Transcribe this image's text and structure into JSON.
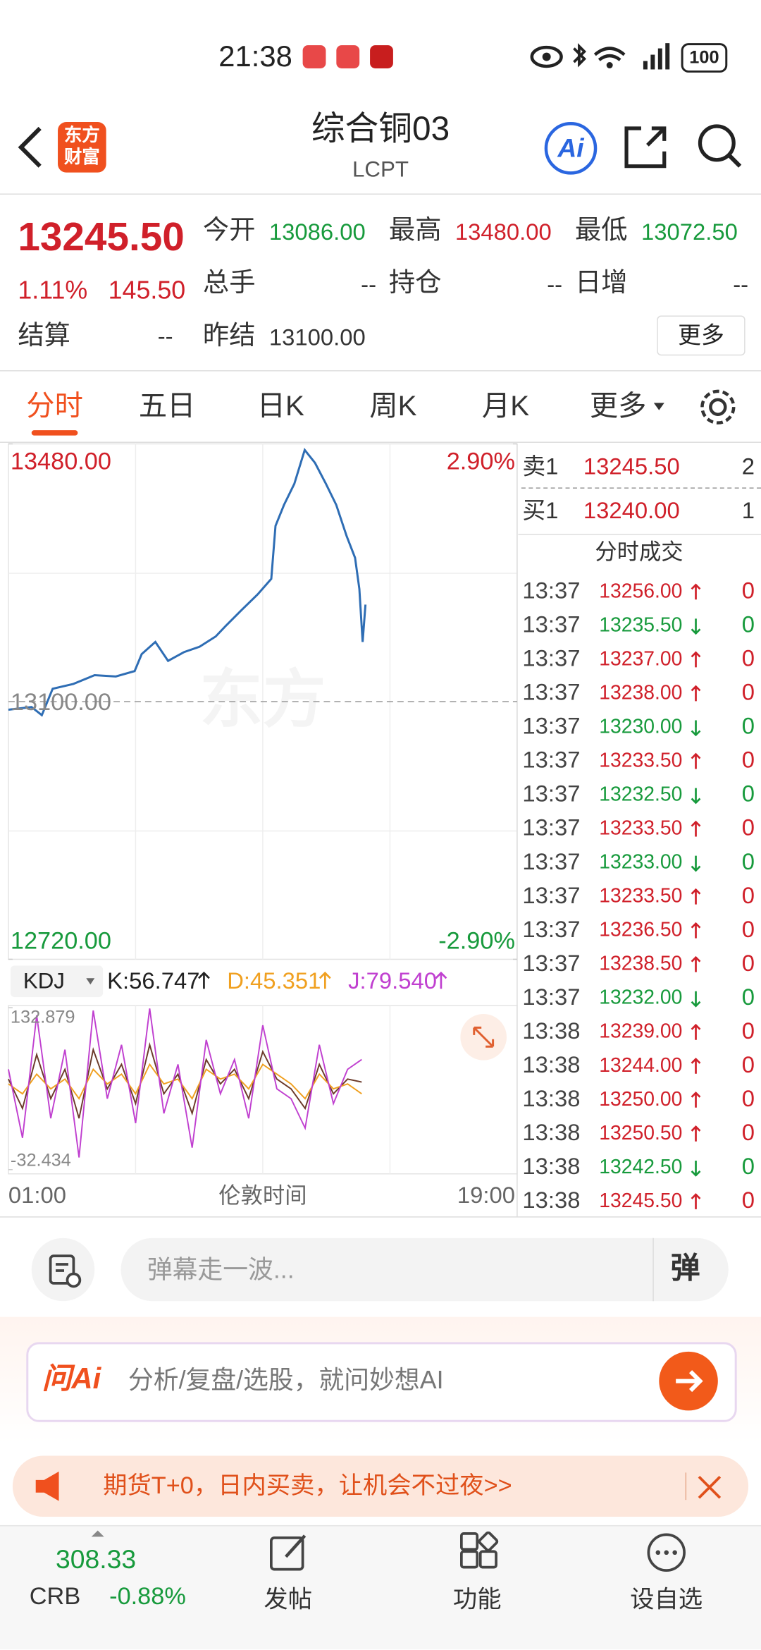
{
  "status_bar": {
    "time": "21:38",
    "battery": "100"
  },
  "header": {
    "logo_lines": [
      "东方",
      "财富"
    ],
    "title": "综合铜03",
    "code": "LCPT",
    "ai": "Ai"
  },
  "quote": {
    "price": "13245.50",
    "change_pct": "1.11%",
    "change": "145.50",
    "fields": [
      {
        "label": "今开",
        "value": "13086.00",
        "trend": "down"
      },
      {
        "label": "最高",
        "value": "13480.00",
        "trend": "up"
      },
      {
        "label": "最低",
        "value": "13072.50",
        "trend": "down"
      },
      {
        "label": "总手",
        "value": "--",
        "trend": "flat"
      },
      {
        "label": "持仓",
        "value": "--",
        "trend": "flat"
      },
      {
        "label": "日增",
        "value": "--",
        "trend": "flat"
      },
      {
        "label": "结算",
        "value": "--",
        "trend": "flat"
      },
      {
        "label": "昨结",
        "value": "13100.00",
        "trend": "flat"
      }
    ],
    "more_button": "更多"
  },
  "tabs": {
    "items": [
      "分时",
      "五日",
      "日K",
      "周K",
      "月K",
      "更多"
    ],
    "active": 0
  },
  "chart_data": [
    {
      "type": "line",
      "color": "#2e6db4",
      "x": [
        "01:00",
        "01:49",
        "02:11",
        "02:34",
        "03:18",
        "04:03",
        "04:48",
        "05:28",
        "05:43",
        "06:12",
        "06:39",
        "07:13",
        "07:46",
        "08:20",
        "08:42",
        "09:15",
        "09:49",
        "10:18",
        "10:27",
        "10:45",
        "11:07",
        "11:29",
        "11:51",
        "12:14",
        "12:36",
        "12:58",
        "13:16",
        "13:25",
        "13:32",
        "13:38"
      ],
      "values": [
        13088,
        13092,
        13080,
        13119,
        13126,
        13139,
        13137,
        13145,
        13170,
        13188,
        13160,
        13173,
        13181,
        13196,
        13212,
        13235,
        13258,
        13281,
        13359,
        13390,
        13421,
        13471,
        13452,
        13421,
        13390,
        13344,
        13312,
        13266,
        13188,
        13243
      ],
      "xlim": [
        "01:00",
        "19:00"
      ],
      "xlabel": "伦敦时间",
      "ylim": [
        12720,
        13480
      ],
      "yticks": [
        {
          "value": 13480,
          "label": "13480.00"
        },
        {
          "value": 13100,
          "label": "13100.00"
        },
        {
          "value": 12720,
          "label": "12720.00"
        }
      ],
      "y2lim": [
        -2.9,
        2.9
      ],
      "y2ticks": [
        {
          "value": 2.9,
          "label": "2.90%"
        },
        {
          "value": -2.9,
          "label": "-2.90%"
        }
      ]
    },
    {
      "type": "line",
      "indicator": "KDJ",
      "x": [
        "01:00",
        "01:30",
        "02:00",
        "02:30",
        "03:00",
        "03:30",
        "04:00",
        "04:30",
        "05:00",
        "05:30",
        "06:00",
        "06:30",
        "07:00",
        "07:30",
        "08:00",
        "08:30",
        "09:00",
        "09:30",
        "10:00",
        "10:30",
        "11:00",
        "11:30",
        "12:00",
        "12:30",
        "13:00",
        "13:30"
      ],
      "xlim": [
        "01:00",
        "19:00"
      ],
      "ylim": [
        -32.434,
        132.879
      ],
      "yticks": [
        132.879,
        -32.434
      ],
      "series": [
        {
          "name": "K",
          "legend": "K:56.747",
          "color": "#6b3a2a",
          "values": [
            60,
            30,
            85,
            40,
            70,
            20,
            90,
            50,
            75,
            35,
            95,
            45,
            65,
            25,
            80,
            55,
            70,
            40,
            88,
            60,
            50,
            30,
            75,
            45,
            60,
            57
          ]
        },
        {
          "name": "D",
          "legend": "D:45.351",
          "color": "#f0a020",
          "values": [
            55,
            45,
            65,
            50,
            60,
            40,
            70,
            55,
            65,
            45,
            75,
            55,
            60,
            40,
            70,
            60,
            65,
            50,
            75,
            65,
            55,
            40,
            65,
            50,
            55,
            45
          ]
        },
        {
          "name": "J",
          "legend": "J:79.540",
          "color": "#c040d0",
          "values": [
            70,
            0,
            125,
            20,
            90,
            -20,
            130,
            40,
            95,
            15,
            132,
            25,
            75,
            -10,
            100,
            45,
            80,
            20,
            115,
            50,
            40,
            10,
            95,
            35,
            70,
            80
          ]
        }
      ]
    }
  ],
  "order_book": {
    "asks": [
      {
        "label": "卖1",
        "price": "13245.50",
        "volume": "2"
      }
    ],
    "bids": [
      {
        "label": "买1",
        "price": "13240.00",
        "volume": "1"
      }
    ],
    "trades_title": "分时成交",
    "trades": [
      {
        "time": "13:37",
        "price": "13256.00",
        "dir": "up",
        "volume": "0"
      },
      {
        "time": "13:37",
        "price": "13235.50",
        "dir": "down",
        "volume": "0"
      },
      {
        "time": "13:37",
        "price": "13237.00",
        "dir": "up",
        "volume": "0"
      },
      {
        "time": "13:37",
        "price": "13238.00",
        "dir": "up",
        "volume": "0"
      },
      {
        "time": "13:37",
        "price": "13230.00",
        "dir": "down",
        "volume": "0"
      },
      {
        "time": "13:37",
        "price": "13233.50",
        "dir": "up",
        "volume": "0"
      },
      {
        "time": "13:37",
        "price": "13232.50",
        "dir": "down",
        "volume": "0"
      },
      {
        "time": "13:37",
        "price": "13233.50",
        "dir": "up",
        "volume": "0"
      },
      {
        "time": "13:37",
        "price": "13233.00",
        "dir": "down",
        "volume": "0"
      },
      {
        "time": "13:37",
        "price": "13233.50",
        "dir": "up",
        "volume": "0"
      },
      {
        "time": "13:37",
        "price": "13236.50",
        "dir": "up",
        "volume": "0"
      },
      {
        "time": "13:37",
        "price": "13238.50",
        "dir": "up",
        "volume": "0"
      },
      {
        "time": "13:37",
        "price": "13232.00",
        "dir": "down",
        "volume": "0"
      },
      {
        "time": "13:38",
        "price": "13239.00",
        "dir": "up",
        "volume": "0"
      },
      {
        "time": "13:38",
        "price": "13244.00",
        "dir": "up",
        "volume": "0"
      },
      {
        "time": "13:38",
        "price": "13250.00",
        "dir": "up",
        "volume": "0"
      },
      {
        "time": "13:38",
        "price": "13250.50",
        "dir": "up",
        "volume": "0"
      },
      {
        "time": "13:38",
        "price": "13242.50",
        "dir": "down",
        "volume": "0"
      },
      {
        "time": "13:38",
        "price": "13245.50",
        "dir": "up",
        "volume": "0"
      }
    ]
  },
  "danmu": {
    "placeholder": "弹幕走一波...",
    "button": "弹"
  },
  "ai_bar": {
    "logo": "问Ai",
    "placeholder": "分析/复盘/选股，就问妙想AI"
  },
  "banner": {
    "text": "期货T+0，日内买卖，让机会不过夜>>"
  },
  "bottom_nav": {
    "index_value": "308.33",
    "index_name": "CRB",
    "index_change": "-0.88%",
    "items": [
      "发帖",
      "功能",
      "设自选"
    ]
  }
}
